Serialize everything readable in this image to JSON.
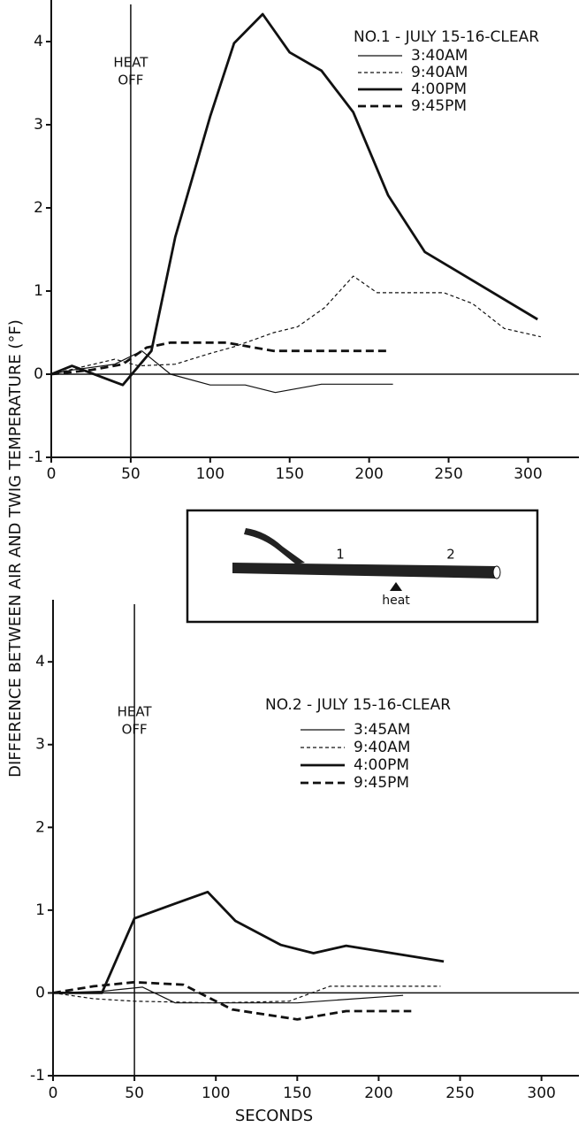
{
  "chart_data": [
    {
      "type": "line",
      "ylabel": "DIFFERENCE BETWEEN AIR AND TWIG TEMPERATURE (°F)",
      "legend_title": "NO.1 - JULY 15-16-CLEAR",
      "annotation": [
        "HEAT",
        "OFF"
      ],
      "annotation_x": 50,
      "reference_line": 0,
      "xlim": [
        0,
        332
      ],
      "ylim": [
        -1,
        4.5
      ],
      "xticks": [
        0,
        50,
        100,
        150,
        200,
        250,
        300
      ],
      "yticks": [
        -1,
        0,
        1,
        2,
        3,
        4
      ],
      "series": [
        {
          "name": "3:40AM",
          "color": "#111111",
          "linestyle": "solid",
          "linewidth": 1.2,
          "x": [
            0,
            13,
            40,
            57,
            75,
            100,
            122,
            141,
            170,
            215
          ],
          "values": [
            0,
            0.05,
            0.12,
            0.28,
            0,
            -0.13,
            -0.13,
            -0.22,
            -0.12,
            -0.12
          ]
        },
        {
          "name": "9:40AM",
          "color": "#111111",
          "linestyle": "dashed",
          "linewidth": 1.2,
          "x": [
            0,
            40,
            55,
            78,
            100,
            115,
            140,
            155,
            172,
            190,
            205,
            225,
            247,
            265,
            285,
            308
          ],
          "values": [
            0,
            0.18,
            0.1,
            0.12,
            0.25,
            0.33,
            0.5,
            0.57,
            0.8,
            1.18,
            0.98,
            0.98,
            0.98,
            0.85,
            0.55,
            0.45
          ]
        },
        {
          "name": "4:00PM",
          "color": "#111111",
          "linestyle": "solid",
          "linewidth": 2.8,
          "x": [
            0,
            13,
            45,
            63,
            78,
            100,
            115,
            133,
            150,
            170,
            190,
            212,
            235,
            306
          ],
          "values": [
            0,
            0.1,
            -0.13,
            0.28,
            1.65,
            3.1,
            3.98,
            4.33,
            3.87,
            3.65,
            3.15,
            2.15,
            1.47,
            0.66
          ]
        },
        {
          "name": "9:45PM",
          "color": "#111111",
          "linestyle": "dashed",
          "linewidth": 2.8,
          "x": [
            0,
            25,
            45,
            60,
            75,
            110,
            140,
            170,
            212
          ],
          "values": [
            0,
            0.05,
            0.12,
            0.32,
            0.38,
            0.38,
            0.28,
            0.28,
            0.28
          ]
        }
      ]
    },
    {
      "type": "line",
      "xlabel": "SECONDS",
      "legend_title": "NO.2 - JULY 15-16-CLEAR",
      "annotation": [
        "HEAT",
        "OFF"
      ],
      "annotation_x": 50,
      "reference_line": 0,
      "xlim": [
        0,
        323
      ],
      "ylim": [
        -1,
        4.75
      ],
      "xticks": [
        0,
        50,
        100,
        150,
        200,
        250,
        300
      ],
      "yticks": [
        -1,
        0,
        1,
        2,
        3,
        4
      ],
      "series": [
        {
          "name": "3:45AM",
          "color": "#111111",
          "linestyle": "solid",
          "linewidth": 1.2,
          "x": [
            0,
            30,
            55,
            75,
            150,
            215
          ],
          "values": [
            0,
            0.02,
            0.07,
            -0.12,
            -0.12,
            -0.03
          ]
        },
        {
          "name": "9:40AM",
          "color": "#111111",
          "linestyle": "dashed",
          "linewidth": 1.2,
          "x": [
            0,
            25,
            50,
            100,
            145,
            170,
            238
          ],
          "values": [
            0,
            -0.07,
            -0.1,
            -0.12,
            -0.1,
            0.08,
            0.08
          ]
        },
        {
          "name": "4:00PM",
          "color": "#111111",
          "linestyle": "solid",
          "linewidth": 2.8,
          "x": [
            0,
            30,
            50,
            75,
            95,
            112,
            140,
            160,
            180,
            240
          ],
          "values": [
            0,
            0,
            0.9,
            1.08,
            1.22,
            0.87,
            0.58,
            0.48,
            0.57,
            0.38
          ]
        },
        {
          "name": "9:45PM",
          "color": "#111111",
          "linestyle": "dashed",
          "linewidth": 2.8,
          "x": [
            0,
            25,
            50,
            80,
            110,
            150,
            180,
            220
          ],
          "values": [
            0,
            0.08,
            0.13,
            0.1,
            -0.2,
            -0.32,
            -0.22,
            -0.22
          ]
        }
      ]
    }
  ],
  "inset": {
    "labels": [
      "1",
      "2",
      "heat"
    ]
  }
}
